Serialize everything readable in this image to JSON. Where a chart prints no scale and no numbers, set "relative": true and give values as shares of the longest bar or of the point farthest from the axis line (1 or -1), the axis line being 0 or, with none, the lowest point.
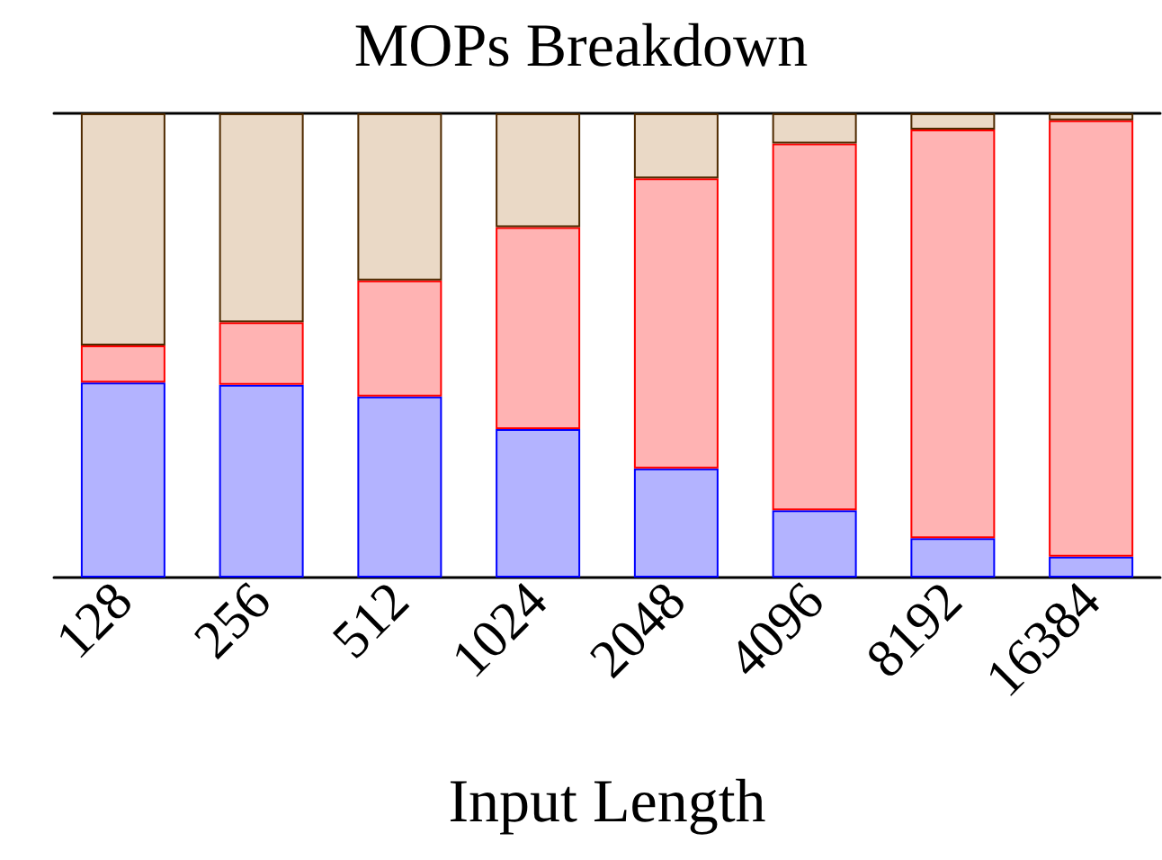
{
  "chart_data": {
    "type": "bar",
    "title": "MOPs Breakdown",
    "xlabel": "Input Length",
    "categories": [
      "128",
      "256",
      "512",
      "1024",
      "2048",
      "4096",
      "8192",
      "16384"
    ],
    "stacked": true,
    "relative": true,
    "series": [
      {
        "color": "#b3b3ff",
        "values": [
          0.42,
          0.415,
          0.39,
          0.32,
          0.235,
          0.145,
          0.085,
          0.045
        ]
      },
      {
        "color": "#ffb3b3",
        "values": [
          0.08,
          0.135,
          0.25,
          0.435,
          0.625,
          0.79,
          0.88,
          0.94
        ]
      },
      {
        "color": "#ead9c6",
        "values": [
          0.5,
          0.45,
          0.36,
          0.245,
          0.14,
          0.065,
          0.035,
          0.015
        ]
      }
    ]
  }
}
